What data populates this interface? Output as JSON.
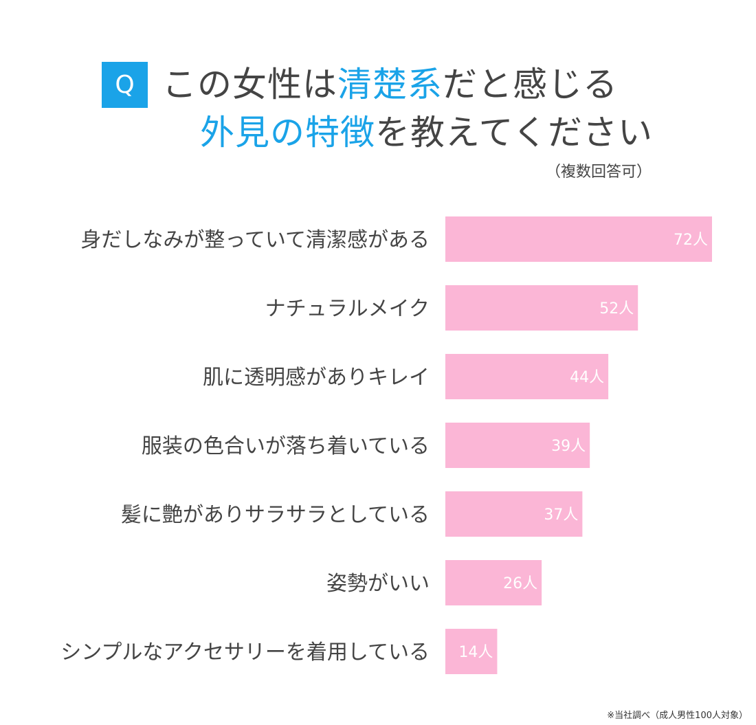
{
  "colors": {
    "accent": "#1aa3e8",
    "bar": "#fbb6d6",
    "text": "#444444"
  },
  "header": {
    "q_badge": "Q",
    "line1": [
      {
        "text": "この女性は",
        "hl": false
      },
      {
        "text": "清楚系",
        "hl": true
      },
      {
        "text": "だと感じる",
        "hl": false
      }
    ],
    "line2": [
      {
        "text": "外見の特徴",
        "hl": true
      },
      {
        "text": "を教えてください",
        "hl": false
      }
    ],
    "note": "（複数回答可）"
  },
  "chart_data": {
    "type": "bar",
    "orientation": "horizontal",
    "categories": [
      "身だしなみが整っていて清潔感がある",
      "ナチュラルメイク",
      "肌に透明感がありキレイ",
      "服装の色合いが落ち着いている",
      "髪に艶がありサラサラとしている",
      "姿勢がいい",
      "シンプルなアクセサリーを着用している"
    ],
    "values": [
      72,
      52,
      44,
      39,
      37,
      26,
      14
    ],
    "data_labels": [
      "72人",
      "52人",
      "44人",
      "39人",
      "37人",
      "26人",
      "14人"
    ],
    "unit": "人",
    "grid": false
  },
  "footer": {
    "source": "※当社調べ（成人男性100人対象）"
  }
}
